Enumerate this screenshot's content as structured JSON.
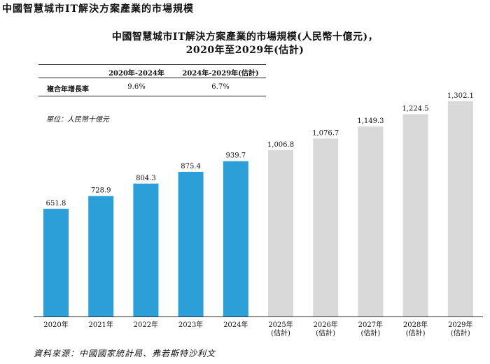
{
  "section_title": "中國智慧城市IT解決方案產業的市場規模",
  "chart_data": {
    "type": "bar",
    "title_line1": "中國智慧城市IT解決方案產業的市場規模(人民幣十億元)，",
    "title_line2": "2020年至2029年(估計)",
    "unit_label": "單位：人民幣十億元",
    "categories": [
      [
        "2020年"
      ],
      [
        "2021年"
      ],
      [
        "2022年"
      ],
      [
        "2023年"
      ],
      [
        "2024年"
      ],
      [
        "2025年",
        "(估計)"
      ],
      [
        "2026年",
        "(估計)"
      ],
      [
        "2027年",
        "(估計)"
      ],
      [
        "2028年",
        "(估計)"
      ],
      [
        "2029年",
        "(估計)"
      ]
    ],
    "values": [
      651.8,
      728.9,
      804.3,
      875.4,
      939.7,
      1006.8,
      1076.7,
      1149.3,
      1224.5,
      1302.1
    ],
    "value_labels": [
      "651.8",
      "728.9",
      "804.3",
      "875.4",
      "939.7",
      "1,006.8",
      "1,076.7",
      "1,149.3",
      "1,224.5",
      "1,302.1"
    ],
    "estimated": [
      false,
      false,
      false,
      false,
      false,
      true,
      true,
      true,
      true,
      true
    ],
    "colors": {
      "actual": "#2a9fd8",
      "estimated": "#d9d9d9"
    },
    "ylim": [
      0,
      1302.1
    ],
    "xlabel": "",
    "ylabel": ""
  },
  "cagr_table": {
    "col1_header": "2020年-2024年",
    "col2_header": "2024年-2029年(估計)",
    "row_label": "複合年增長率",
    "col1_value": "9.6%",
    "col2_value": "6.7%"
  },
  "source": "資料來源：中國國家統計局、弗若斯特沙利文"
}
